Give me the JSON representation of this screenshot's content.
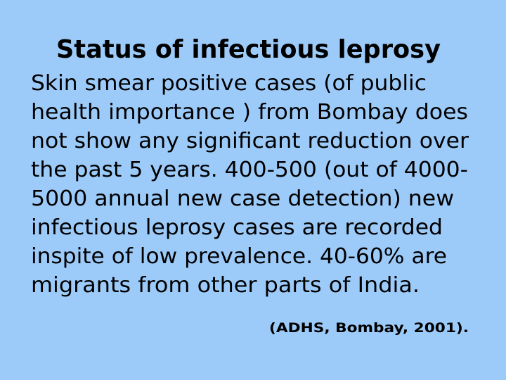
{
  "title": "Status of infectious leprosy",
  "body_lines": [
    "Skin smear positive cases (of public",
    "health importance ) from Bombay does",
    "not show any significant reduction over",
    "the past 5 years. 400-500 (out of 4000-",
    "5000 annual new case detection) new",
    "infectious leprosy cases are recorded",
    "inspite of low prevalence. 40-60% are",
    "migrants from other parts of India."
  ],
  "citation": "(ADHS, Bombay, 2001)."
}
